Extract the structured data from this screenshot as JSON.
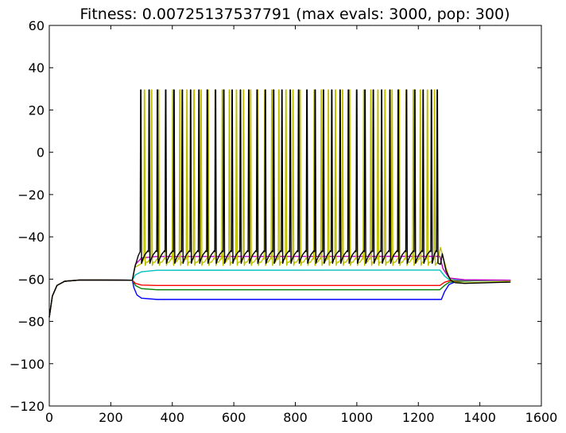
{
  "chart_data": {
    "type": "line",
    "title": "Fitness: 0.00725137537791 (max evals: 3000, pop: 300)",
    "xlabel": "",
    "ylabel": "",
    "xlim": [
      0,
      1600
    ],
    "ylim": [
      -120,
      60
    ],
    "xticks": [
      0,
      200,
      400,
      600,
      800,
      1000,
      1200,
      1400,
      1600
    ],
    "yticks": [
      60,
      40,
      20,
      0,
      -20,
      -40,
      -60,
      -80,
      -100,
      -120
    ],
    "xtick_labels": [
      "0",
      "200",
      "400",
      "600",
      "800",
      "1000",
      "1200",
      "1400",
      "1600"
    ],
    "ytick_labels": [
      "60",
      "40",
      "20",
      "0",
      "−20",
      "−40",
      "−60",
      "−80",
      "−100",
      "−120"
    ],
    "grid": false,
    "legend": "none",
    "series": [
      {
        "color": "#0000ff",
        "points": [
          [
            0,
            -78
          ],
          [
            10,
            -68
          ],
          [
            25,
            -63
          ],
          [
            50,
            -61
          ],
          [
            100,
            -60.4
          ],
          [
            270,
            -60.5
          ],
          [
            275,
            -64
          ],
          [
            285,
            -67.5
          ],
          [
            300,
            -69
          ],
          [
            350,
            -69.6
          ],
          [
            1270,
            -69.6
          ],
          [
            1275,
            -69.6
          ],
          [
            1285,
            -66
          ],
          [
            1300,
            -62.5
          ],
          [
            1325,
            -61
          ],
          [
            1400,
            -60.6
          ],
          [
            1500,
            -60.5
          ]
        ]
      },
      {
        "color": "#008000",
        "points": [
          [
            0,
            -78
          ],
          [
            10,
            -68
          ],
          [
            25,
            -63
          ],
          [
            50,
            -61
          ],
          [
            100,
            -60.4
          ],
          [
            270,
            -60.5
          ],
          [
            280,
            -63
          ],
          [
            300,
            -64.5
          ],
          [
            350,
            -65
          ],
          [
            1270,
            -65
          ],
          [
            1285,
            -63
          ],
          [
            1300,
            -61.5
          ],
          [
            1330,
            -61
          ],
          [
            1400,
            -60.7
          ],
          [
            1500,
            -60.5
          ]
        ]
      },
      {
        "color": "#ff0000",
        "points": [
          [
            0,
            -78
          ],
          [
            10,
            -68
          ],
          [
            25,
            -63
          ],
          [
            50,
            -61
          ],
          [
            100,
            -60.4
          ],
          [
            270,
            -60.5
          ],
          [
            280,
            -62
          ],
          [
            300,
            -62.8
          ],
          [
            350,
            -63
          ],
          [
            1270,
            -63
          ],
          [
            1285,
            -61.5
          ],
          [
            1300,
            -60.8
          ],
          [
            1350,
            -60.6
          ],
          [
            1500,
            -60.5
          ]
        ]
      },
      {
        "color": "#00bfbf",
        "points": [
          [
            0,
            -78
          ],
          [
            10,
            -68
          ],
          [
            25,
            -63
          ],
          [
            50,
            -61
          ],
          [
            100,
            -60.4
          ],
          [
            270,
            -60.5
          ],
          [
            280,
            -58
          ],
          [
            300,
            -56.5
          ],
          [
            350,
            -55.8
          ],
          [
            1270,
            -55.7
          ],
          [
            1285,
            -58.5
          ],
          [
            1300,
            -60.3
          ],
          [
            1350,
            -60.5
          ],
          [
            1500,
            -60.5
          ]
        ]
      },
      {
        "color": "#bf00bf",
        "points": [
          [
            0,
            -78
          ],
          [
            10,
            -68
          ],
          [
            25,
            -63
          ],
          [
            50,
            -61
          ],
          [
            100,
            -60.4
          ],
          [
            270,
            -60.5
          ],
          [
            280,
            -53
          ],
          [
            300,
            -50
          ],
          [
            350,
            -49.3
          ],
          [
            1270,
            -49.2
          ],
          [
            1280,
            -55
          ],
          [
            1300,
            -59.5
          ],
          [
            1350,
            -60.3
          ],
          [
            1500,
            -60.5
          ]
        ]
      },
      {
        "color": "#bfbf00",
        "spikes": {
          "start": 270,
          "end": 1282,
          "rest_before": -60.5,
          "peak": 29.5,
          "trough": -53.5,
          "after_spike": -50.5,
          "spike_times": [
            309,
            332,
            355,
            378,
            401,
            424,
            447,
            470,
            493,
            516,
            539,
            562,
            585,
            608,
            631,
            654,
            677,
            700,
            723,
            746,
            769,
            792,
            815,
            838,
            861,
            884,
            907,
            930,
            953,
            976,
            999,
            1022,
            1045,
            1068,
            1091,
            1114,
            1137,
            1160,
            1183,
            1206,
            1229,
            1252
          ],
          "tail": [
            [
              1262,
              -52
            ],
            [
              1272,
              -45
            ],
            [
              1285,
              -52
            ],
            [
              1300,
              -59.5
            ],
            [
              1320,
              -61.5
            ],
            [
              1350,
              -61.8
            ],
            [
              1500,
              -61
            ]
          ]
        }
      },
      {
        "color": "#000000",
        "spikes": {
          "start": 270,
          "end": 1282,
          "rest_before": -60.5,
          "peak": 29.5,
          "trough": -52.5,
          "after_spike": -47,
          "spike_times": [
            297,
            324,
            351,
            378,
            405,
            432,
            459,
            486,
            513,
            540,
            567,
            594,
            621,
            648,
            675,
            702,
            729,
            756,
            783,
            810,
            837,
            864,
            891,
            918,
            945,
            972,
            999,
            1026,
            1053,
            1080,
            1107,
            1134,
            1161,
            1188,
            1215,
            1242,
            1261
          ],
          "tail": [
            [
              1272,
              -53
            ],
            [
              1278,
              -48
            ],
            [
              1290,
              -56
            ],
            [
              1305,
              -60.5
            ],
            [
              1320,
              -61.7
            ],
            [
              1350,
              -62
            ],
            [
              1500,
              -61.4
            ]
          ]
        }
      }
    ]
  }
}
